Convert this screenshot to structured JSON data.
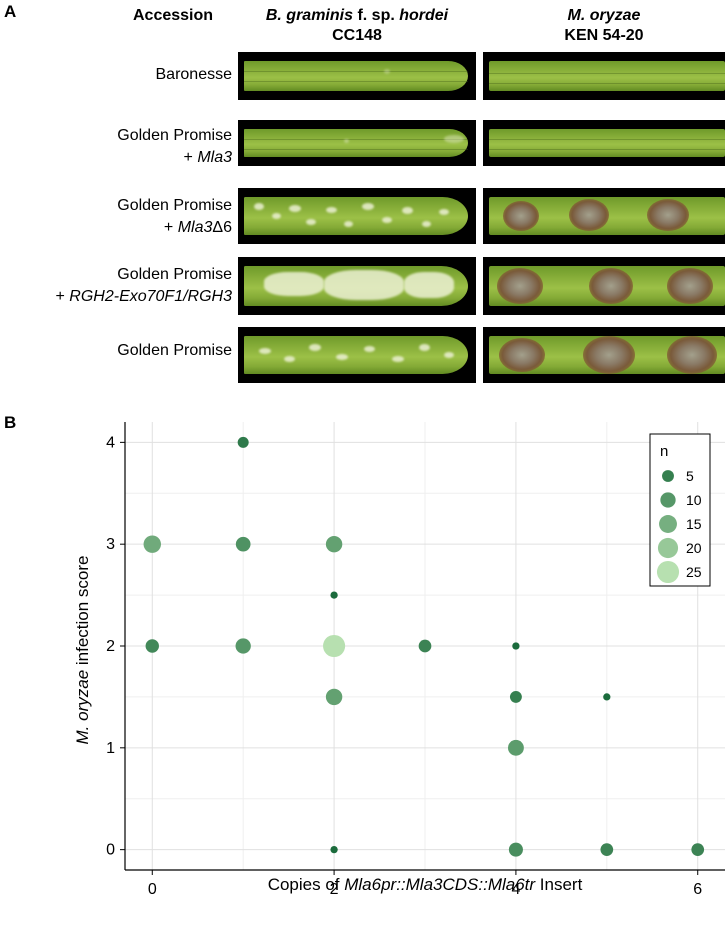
{
  "panel_a": {
    "label": "A",
    "header_accession": "Accession",
    "col1": {
      "italic1": "B. graminis",
      "plain": " f. sp. ",
      "italic2": "hordei",
      "line2": "CC148"
    },
    "col2": {
      "italic": "M. oryzae",
      "line2": "KEN 54-20"
    },
    "rows": [
      {
        "line1": "Baronesse",
        "line2": ""
      },
      {
        "line1": "Golden Promise",
        "line2_prefix": "+ ",
        "line2_italic": "Mla3"
      },
      {
        "line1": "Golden Promise",
        "line2_prefix": "+ ",
        "line2_italic": "Mla3",
        "line2_suffix": "Δ6"
      },
      {
        "line1": "Golden Promise",
        "line2_prefix": "+ ",
        "line2_italic": "RGH2-Exo70F1/RGH3"
      },
      {
        "line1": "Golden Promise",
        "line2": ""
      }
    ]
  },
  "panel_b": {
    "label": "B"
  },
  "chart_data": {
    "type": "scatter",
    "ylabel_italic": "M. oryzae",
    "ylabel_rest": " infection score",
    "xlabel_prefix": "Copies of ",
    "xlabel_italic": "Mla6pr::Mla3CDS::Mla6tr",
    "xlabel_suffix": " Insert",
    "xlim": [
      -0.3,
      6.3
    ],
    "ylim": [
      -0.2,
      4.2
    ],
    "x_ticks": [
      "0",
      "2",
      "4",
      "6"
    ],
    "y_ticks": [
      "0",
      "1",
      "2",
      "3",
      "4"
    ],
    "grid": true,
    "legend": {
      "title": "n",
      "sizes": [
        5,
        10,
        15,
        20,
        25
      ],
      "labels": [
        "5",
        "10",
        "15",
        "20",
        "25"
      ],
      "placement": "top-right"
    },
    "points": [
      {
        "x": 0,
        "y": 3,
        "n": 14
      },
      {
        "x": 0,
        "y": 2,
        "n": 7
      },
      {
        "x": 1,
        "y": 4,
        "n": 4
      },
      {
        "x": 1,
        "y": 3,
        "n": 9
      },
      {
        "x": 1,
        "y": 2,
        "n": 10
      },
      {
        "x": 2,
        "y": 3,
        "n": 12
      },
      {
        "x": 2,
        "y": 2.5,
        "n": 1
      },
      {
        "x": 2,
        "y": 2,
        "n": 25
      },
      {
        "x": 2,
        "y": 1.5,
        "n": 12
      },
      {
        "x": 2,
        "y": 0,
        "n": 1
      },
      {
        "x": 3,
        "y": 2,
        "n": 6
      },
      {
        "x": 4,
        "y": 2,
        "n": 1
      },
      {
        "x": 4,
        "y": 1.5,
        "n": 5
      },
      {
        "x": 4,
        "y": 1,
        "n": 11
      },
      {
        "x": 4,
        "y": 0,
        "n": 8
      },
      {
        "x": 5,
        "y": 1.5,
        "n": 1
      },
      {
        "x": 5,
        "y": 0,
        "n": 6
      },
      {
        "x": 6,
        "y": 0,
        "n": 6
      }
    ],
    "colors": {
      "dark": "#1b6b3c",
      "light": "#b7e0b0"
    }
  }
}
